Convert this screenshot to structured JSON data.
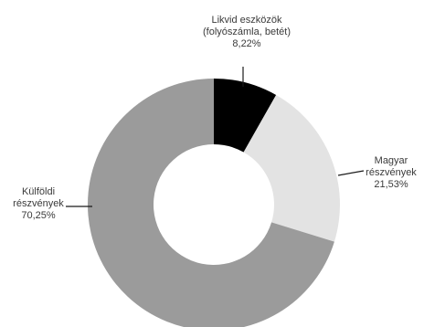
{
  "chart_data": {
    "type": "pie",
    "donut": true,
    "title": "",
    "slices": [
      {
        "name": "Likvid eszközök (folyószámla, betét)",
        "label_lines": [
          "Likvid eszközök",
          "(folyószámla, betét)",
          "8,22%"
        ],
        "value": 8.22,
        "color": "#000000"
      },
      {
        "name": "Magyar részvények",
        "label_lines": [
          "Magyar",
          "részvények",
          "21,53%"
        ],
        "value": 21.53,
        "color": "#e3e3e3"
      },
      {
        "name": "Külföldi részvények",
        "label_lines": [
          "Külföldi",
          "részvények",
          "70,25%"
        ],
        "value": 70.25,
        "color": "#9b9b9b"
      }
    ],
    "start_angle": "12 o'clock",
    "direction": "clockwise",
    "legend": "none"
  }
}
